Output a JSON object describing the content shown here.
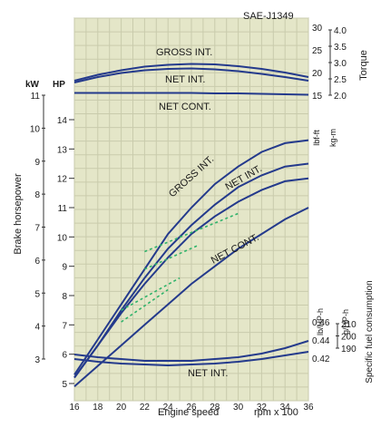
{
  "standard": "SAE-J1349",
  "axis_labels": {
    "x_title": "Engine speed",
    "x_unit": "rpm x 100",
    "left_unit_kw": "kW",
    "left_unit_hp": "HP",
    "left_title": "Brake horsepower",
    "torque_title": "Torque",
    "torque_unit_lbft": "lbf-ft",
    "torque_unit_kgm": "kg-m",
    "fuel_title": "Specific fuel consumption",
    "fuel_unit_lb": "lb/HP-h",
    "fuel_unit_g": "g/HP-h"
  },
  "ticks": {
    "x": [
      "16",
      "18",
      "20",
      "22",
      "24",
      "26",
      "28",
      "30",
      "32",
      "34",
      "36"
    ],
    "kw": [
      "3",
      "4",
      "5",
      "6",
      "7",
      "8",
      "9",
      "10",
      "11"
    ],
    "hp": [
      "5",
      "6",
      "7",
      "8",
      "9",
      "10",
      "11",
      "12",
      "13",
      "14"
    ],
    "torque_lbft": [
      "15",
      "20",
      "25",
      "30"
    ],
    "torque_kgm": [
      "2.0",
      "2.5",
      "3.0",
      "3.5",
      "4.0"
    ],
    "fuel_lb": [
      "0.42",
      "0.44",
      "0.46"
    ],
    "fuel_g": [
      "190",
      "200",
      "210"
    ]
  },
  "labels": {
    "torque_gross": "GROSS INT.",
    "torque_net": "NET INT.",
    "torque_cont": "NET CONT.",
    "power_gross": "GROSS INT.",
    "power_net": "NET INT.",
    "power_cont": "NET CONT.",
    "fuel_net": "NET INT."
  },
  "colors": {
    "grid_bg": "#e4e6c8",
    "grid_line": "#c9cbac",
    "curve": "#243a8c",
    "dashed": "#2fb36a"
  },
  "chart_data": {
    "type": "line",
    "x": [
      16,
      18,
      20,
      22,
      24,
      26,
      28,
      30,
      32,
      34,
      36
    ],
    "xlabel": "Engine speed",
    "xunit": "rpm x 100",
    "xlim": [
      16,
      36
    ],
    "power_hp_axis": [
      4,
      15
    ],
    "torque_lbft_axis": [
      13,
      31
    ],
    "fuel_lb_axis": [
      0.4,
      0.47
    ],
    "series": [
      {
        "name": "GROSS INT.",
        "group": "torque",
        "unit": "lbf-ft",
        "values": [
          18.2,
          19.5,
          20.5,
          21.3,
          21.7,
          21.9,
          21.8,
          21.4,
          20.8,
          20.0,
          19.0
        ]
      },
      {
        "name": "NET INT.",
        "group": "torque",
        "unit": "lbf-ft",
        "values": [
          17.8,
          19.0,
          19.9,
          20.5,
          20.8,
          20.9,
          20.7,
          20.3,
          19.7,
          19.0,
          18.2
        ]
      },
      {
        "name": "NET CONT.",
        "group": "torque",
        "unit": "lbf-ft",
        "values": [
          15.5,
          15.5,
          15.5,
          15.5,
          15.5,
          15.5,
          15.4,
          15.4,
          15.3,
          15.2,
          15.1
        ]
      },
      {
        "name": "GROSS INT.",
        "group": "power",
        "unit": "HP",
        "values": [
          5.3,
          6.5,
          7.7,
          8.9,
          10.1,
          11.0,
          11.8,
          12.4,
          12.9,
          13.2,
          13.3
        ]
      },
      {
        "name": "NET INT.",
        "group": "power",
        "unit": "HP",
        "values": [
          5.2,
          6.3,
          7.5,
          8.6,
          9.6,
          10.4,
          11.1,
          11.7,
          12.1,
          12.4,
          12.5
        ]
      },
      {
        "name": "",
        "group": "power",
        "unit": "HP",
        "values": [
          5.2,
          6.3,
          7.4,
          8.4,
          9.3,
          10.1,
          10.7,
          11.2,
          11.6,
          11.9,
          12.0
        ]
      },
      {
        "name": "NET CONT.",
        "group": "power",
        "unit": "HP",
        "values": [
          4.9,
          5.6,
          6.3,
          7.0,
          7.7,
          8.4,
          9.0,
          9.6,
          10.1,
          10.6,
          11.0
        ]
      },
      {
        "name": "NET INT.",
        "group": "fuel",
        "unit": "lb/HP-h",
        "values": [
          0.424,
          0.421,
          0.419,
          0.417,
          0.417,
          0.417,
          0.419,
          0.421,
          0.425,
          0.431,
          0.439
        ]
      },
      {
        "name": "",
        "group": "fuel",
        "unit": "lb/HP-h",
        "values": [
          0.419,
          0.416,
          0.414,
          0.413,
          0.412,
          0.413,
          0.414,
          0.416,
          0.419,
          0.423,
          0.427
        ]
      }
    ],
    "dashed_series": [
      {
        "x": [
          22,
          30
        ],
        "values": [
          9.5,
          10.8
        ]
      },
      {
        "x": [
          22,
          26.5
        ],
        "values": [
          8.9,
          9.7
        ]
      },
      {
        "x": [
          20,
          25
        ],
        "values": [
          7.5,
          8.6
        ]
      },
      {
        "x": [
          20,
          24
        ],
        "values": [
          7.1,
          8.2
        ]
      }
    ]
  }
}
